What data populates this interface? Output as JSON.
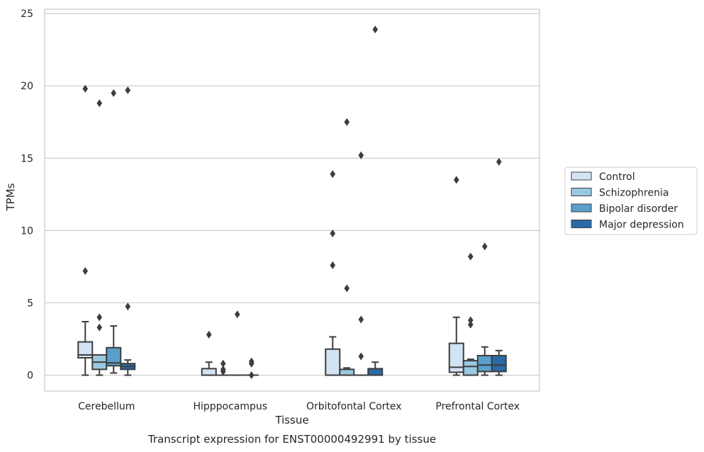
{
  "chart_data": {
    "type": "box",
    "xlabel": "Tissue",
    "ylabel": "TPMs",
    "caption": "Transcript expression for ENST00000492991 by tissue",
    "ylim": [
      -1.1,
      25.3
    ],
    "yticks": [
      0,
      5,
      10,
      15,
      20,
      25
    ],
    "grid": "horizontal",
    "legend_position": "right",
    "categories": [
      "Cerebellum",
      "Hipppocampus",
      "Orbitofontal Cortex",
      "Prefrontal Cortex"
    ],
    "series": [
      {
        "name": "Control",
        "color": "#d2e3f3",
        "boxes": [
          {
            "whislo": 0.0,
            "q1": 1.2,
            "med": 1.4,
            "q3": 2.3,
            "whishi": 3.7,
            "fliers": [
              7.2,
              19.8
            ]
          },
          {
            "whislo": 0.0,
            "q1": 0.0,
            "med": 0.0,
            "q3": 0.45,
            "whishi": 0.9,
            "fliers": [
              2.8
            ]
          },
          {
            "whislo": 0.0,
            "q1": 0.0,
            "med": 0.0,
            "q3": 1.8,
            "whishi": 2.65,
            "fliers": [
              7.6,
              9.8,
              13.9
            ]
          },
          {
            "whislo": 0.0,
            "q1": 0.2,
            "med": 0.55,
            "q3": 2.2,
            "whishi": 4.0,
            "fliers": [
              13.5
            ]
          }
        ]
      },
      {
        "name": "Schizophrenia",
        "color": "#9ac8e0",
        "boxes": [
          {
            "whislo": 0.0,
            "q1": 0.4,
            "med": 0.9,
            "q3": 1.4,
            "whishi": 1.4,
            "fliers": [
              3.3,
              4.0,
              18.8
            ]
          },
          {
            "whislo": 0.0,
            "q1": 0.0,
            "med": 0.0,
            "q3": 0.0,
            "whishi": 0.0,
            "fliers": [
              0.25,
              0.4,
              0.8
            ]
          },
          {
            "whislo": 0.0,
            "q1": 0.0,
            "med": 0.0,
            "q3": 0.4,
            "whishi": 0.5,
            "fliers": [
              6.0,
              17.5
            ]
          },
          {
            "whislo": 0.0,
            "q1": 0.0,
            "med": 0.6,
            "q3": 1.0,
            "whishi": 1.1,
            "fliers": [
              3.5,
              3.8,
              8.2
            ]
          }
        ]
      },
      {
        "name": "Bipolar disorder",
        "color": "#5a9fcb",
        "boxes": [
          {
            "whislo": 0.15,
            "q1": 0.65,
            "med": 0.85,
            "q3": 1.9,
            "whishi": 3.4,
            "fliers": [
              19.5
            ]
          },
          {
            "whislo": 0.0,
            "q1": 0.0,
            "med": 0.0,
            "q3": 0.0,
            "whishi": 0.0,
            "fliers": [
              4.2
            ]
          },
          {
            "whislo": 0.0,
            "q1": 0.0,
            "med": 0.0,
            "q3": 0.0,
            "whishi": 0.0,
            "fliers": [
              1.3,
              3.85,
              15.2
            ]
          },
          {
            "whislo": 0.0,
            "q1": 0.25,
            "med": 0.7,
            "q3": 1.35,
            "whishi": 1.95,
            "fliers": [
              8.9
            ]
          }
        ]
      },
      {
        "name": "Major depression",
        "color": "#2a6aa8",
        "boxes": [
          {
            "whislo": 0.0,
            "q1": 0.4,
            "med": 0.6,
            "q3": 0.8,
            "whishi": 1.05,
            "fliers": [
              4.75,
              19.7
            ]
          },
          {
            "whislo": 0.0,
            "q1": 0.0,
            "med": 0.0,
            "q3": 0.0,
            "whishi": 0.0,
            "fliers": [
              0.0,
              0.8,
              0.95
            ]
          },
          {
            "whislo": 0.0,
            "q1": 0.0,
            "med": 0.0,
            "q3": 0.45,
            "whishi": 0.9,
            "fliers": [
              23.9
            ]
          },
          {
            "whislo": 0.0,
            "q1": 0.25,
            "med": 0.7,
            "q3": 1.35,
            "whishi": 1.7,
            "fliers": [
              14.75
            ]
          }
        ]
      }
    ]
  }
}
